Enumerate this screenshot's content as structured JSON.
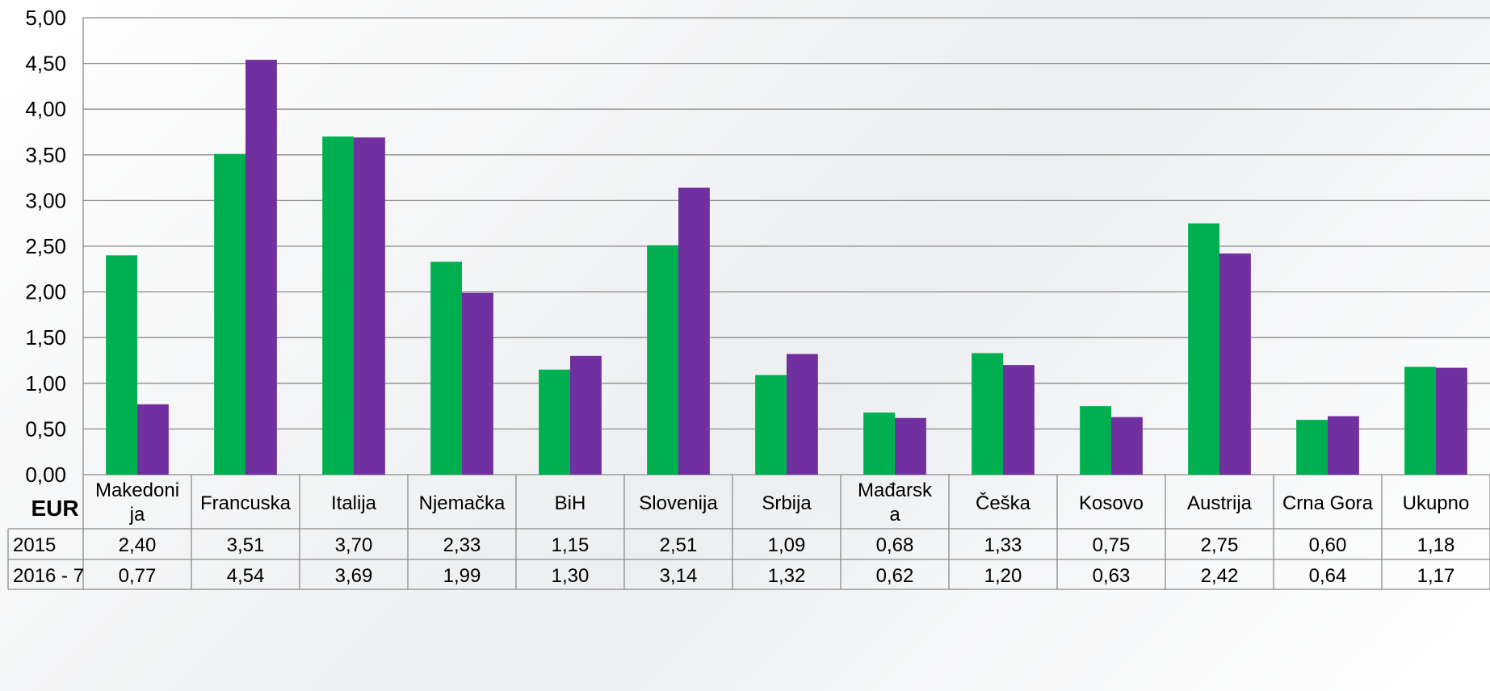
{
  "chart_data": {
    "type": "bar",
    "unit_label": "EUR",
    "categories": [
      "Makedonija",
      "Francuska",
      "Italija",
      "Njemačka",
      "BiH",
      "Slovenija",
      "Srbija",
      "Mađarska",
      "Češka",
      "Kosovo",
      "Austrija",
      "Crna Gora",
      "Ukupno"
    ],
    "category_display": [
      [
        "Makedoni",
        "ja"
      ],
      [
        "Francuska"
      ],
      [
        "Italija"
      ],
      [
        "Njemačka"
      ],
      [
        "BiH"
      ],
      [
        "Slovenija"
      ],
      [
        "Srbija"
      ],
      [
        "Mađarsk",
        "a"
      ],
      [
        "Češka"
      ],
      [
        "Kosovo"
      ],
      [
        "Austrija"
      ],
      [
        "Crna Gora"
      ],
      [
        "Ukupno"
      ]
    ],
    "series": [
      {
        "name": "2015",
        "color": "#00b050",
        "values": [
          2.4,
          3.51,
          3.7,
          2.33,
          1.15,
          2.51,
          1.09,
          0.68,
          1.33,
          0.75,
          2.75,
          0.6,
          1.18
        ]
      },
      {
        "name": "2016 - 7",
        "color": "#7030a0",
        "values": [
          0.77,
          4.54,
          3.69,
          1.99,
          1.3,
          3.14,
          1.32,
          0.62,
          1.2,
          0.63,
          2.42,
          0.64,
          1.17
        ]
      }
    ],
    "table_values": [
      [
        "2,40",
        "3,51",
        "3,70",
        "2,33",
        "1,15",
        "2,51",
        "1,09",
        "0,68",
        "1,33",
        "0,75",
        "2,75",
        "0,60",
        "1,18"
      ],
      [
        "0,77",
        "4,54",
        "3,69",
        "1,99",
        "1,30",
        "3,14",
        "1,32",
        "0,62",
        "1,20",
        "0,63",
        "2,42",
        "0,64",
        "1,17"
      ]
    ],
    "ylim": [
      0,
      5
    ],
    "yticks": [
      "0,00",
      "0,50",
      "1,00",
      "1,50",
      "2,00",
      "2,50",
      "3,00",
      "3,50",
      "4,00",
      "4,50",
      "5,00"
    ],
    "grid": true,
    "legend": "data-table-below"
  }
}
